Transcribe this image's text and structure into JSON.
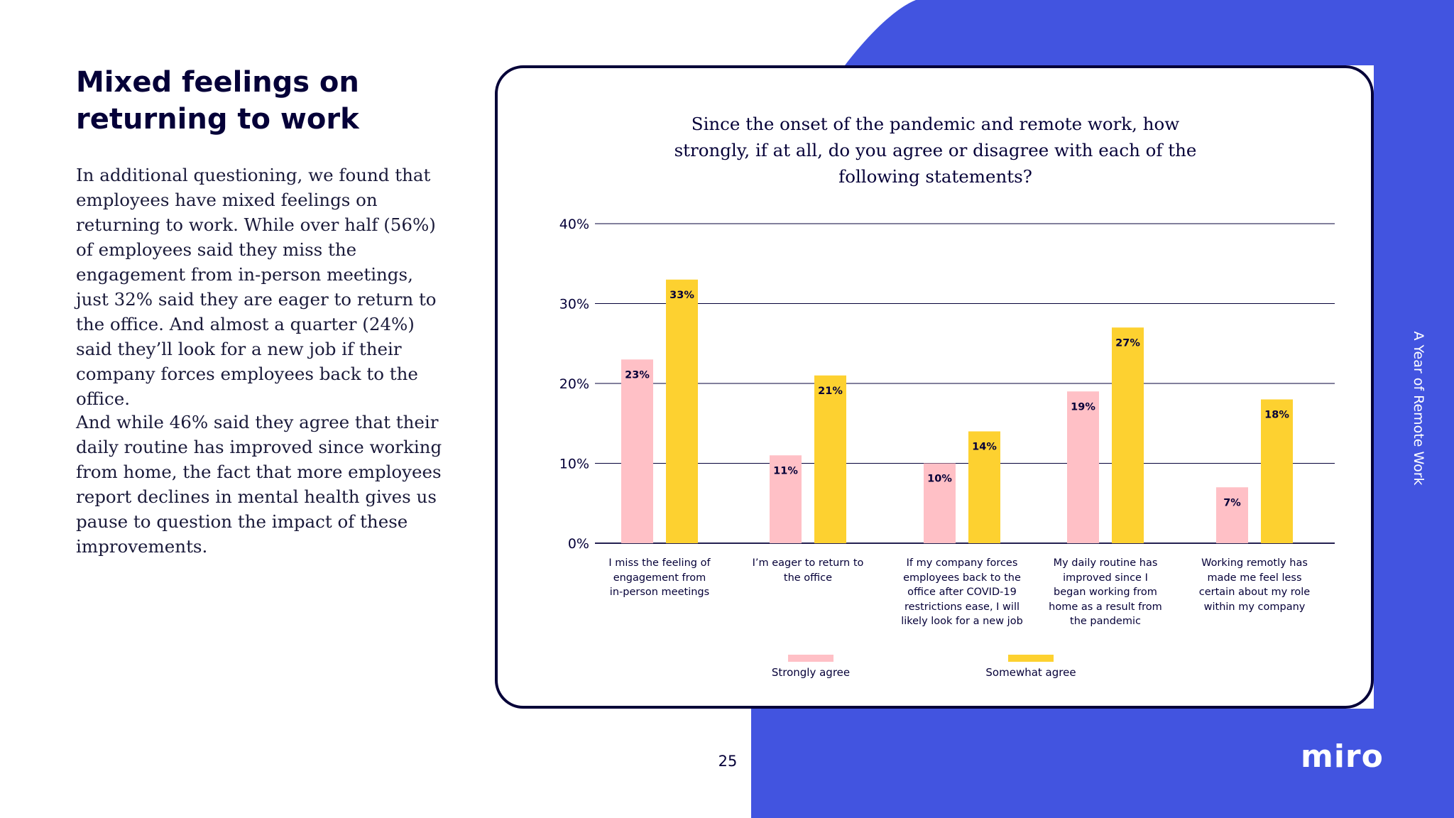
{
  "heading": [
    "Mixed feelings on",
    "returning to work"
  ],
  "paragraphs": [
    "In additional questioning, we found that employees have mixed feelings on returning to work. While over half (56%) of employees said they miss the engagement from in-person meetings, just 32% said they are eager to return to the office. And almost a quarter (24%) said they’ll look for a new job if their company forces employees back to the office.",
    "And while 46% said they agree that their daily routine has improved since working from home, the fact that more employees report declines in mental health gives us pause to question the impact of these improvements."
  ],
  "side_label": "A Year of Remote Work",
  "page_number": "25",
  "logo": "miro",
  "colors": {
    "brand_blue": "#4254E0",
    "strongly_agree": "#FFC0C6",
    "somewhat_agree": "#FDD130",
    "ink": "#050038"
  },
  "chart_data": {
    "type": "bar",
    "title": [
      "Since the onset of the pandemic and remote work, how",
      "strongly, if at all, do you agree or disagree with each of the",
      "following statements?"
    ],
    "categories": [
      [
        "I miss the feeling of",
        "engagement from",
        "in-person meetings"
      ],
      [
        "I’m eager to return to",
        "the office"
      ],
      [
        "If my company forces",
        "employees back to the",
        "office after COVID-19",
        "restrictions ease, I will",
        "likely look for a new job"
      ],
      [
        "My daily routine has",
        "improved since I",
        "began working from",
        "home as a result from",
        "the pandemic"
      ],
      [
        "Working remotly has",
        "made me feel less",
        "certain about my role",
        "within my company"
      ]
    ],
    "series": [
      {
        "name": "Strongly agree",
        "values": [
          23,
          11,
          10,
          19,
          7
        ],
        "labels": [
          "23%",
          "11%",
          "10%",
          "19%",
          "7%"
        ],
        "color": "#FFC0C6"
      },
      {
        "name": "Somewhat agree",
        "values": [
          33,
          21,
          14,
          27,
          18
        ],
        "labels": [
          "33%",
          "21%",
          "14%",
          "27%",
          "18%"
        ],
        "color": "#FDD130"
      }
    ],
    "ylim": [
      0,
      40
    ],
    "yticks": [
      "0%",
      "10%",
      "20%",
      "30%",
      "40%"
    ],
    "grid": true,
    "legend_position": "bottom"
  }
}
